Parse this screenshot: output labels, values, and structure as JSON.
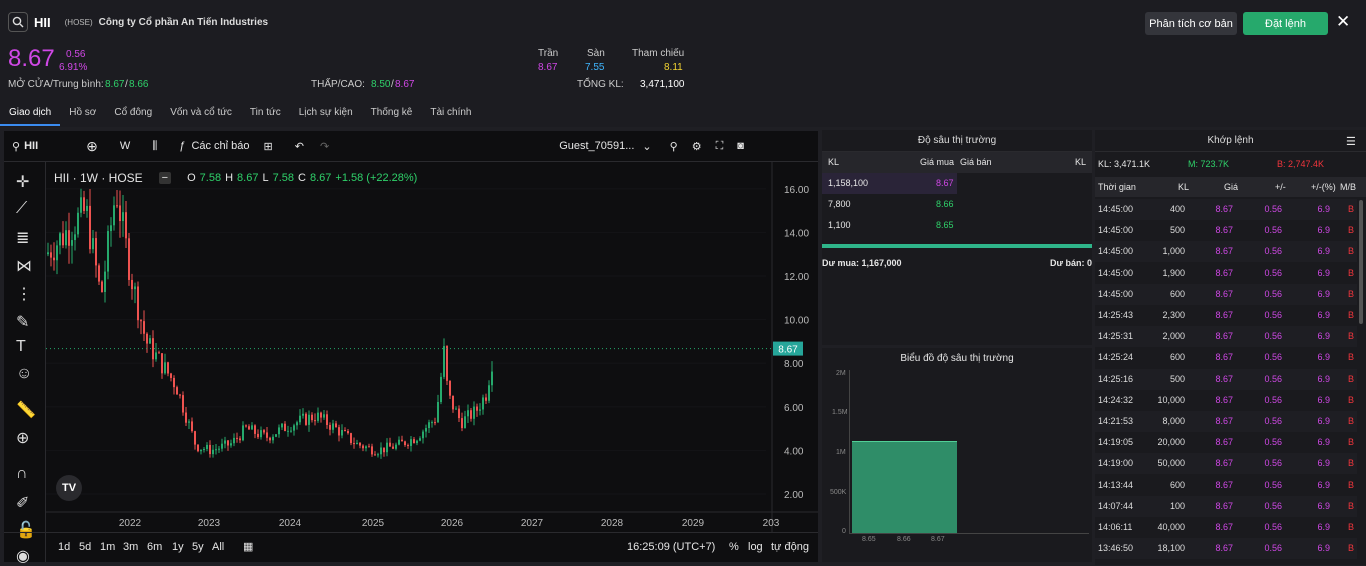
{
  "header": {
    "code": "HII",
    "exchange": "(HOSE)",
    "name": "Công ty Cổ phần An Tiến Industries",
    "btn_basic": "Phân tích cơ bản",
    "btn_order": "Đặt lệnh",
    "close": "✕"
  },
  "quote": {
    "price": "8.67",
    "change": "0.56",
    "pct": "6.91%",
    "open_label": "MỞ CỬA/Trung bình:",
    "open": "8.67",
    "avg": "8.66",
    "lowhigh_label": "THẤP/CAO:",
    "low": "8.50",
    "high": "8.67",
    "ceil_label": "Trần",
    "floor_label": "Sàn",
    "ref_label": "Tham chiếu",
    "ceil": "8.67",
    "floor": "7.55",
    "ref": "8.11",
    "vol_label": "TỔNG KL:",
    "vol": "3,471,100"
  },
  "tabs": [
    "Giao dịch",
    "Hồ sơ",
    "Cổ đông",
    "Vốn và cổ tức",
    "Tin tức",
    "Lịch sự kiện",
    "Thống kê",
    "Tài chính"
  ],
  "chart_toolbar": {
    "symbol": "HII",
    "interval": "W",
    "indicators": "Các chỉ báo",
    "user": "Guest_70591..."
  },
  "chart_legend": {
    "title": "HII · 1W · HOSE",
    "o": "7.58",
    "h": "8.67",
    "l": "7.58",
    "c": "8.67",
    "chg": "+1.58 (+22.28%)",
    "o_l": "O",
    "h_l": "H",
    "l_l": "L",
    "c_l": "C"
  },
  "chart_data": {
    "type": "candlestick",
    "y_ticks": [
      "16.00",
      "14.00",
      "12.00",
      "10.00",
      "8.00",
      "6.00",
      "4.00",
      "2.00"
    ],
    "x_ticks": [
      "2022",
      "2023",
      "2024",
      "2025",
      "2026",
      "2027",
      "2028",
      "2029",
      "203"
    ],
    "last": "8.67",
    "ylim": [
      2,
      17
    ]
  },
  "chart_bottom": {
    "ranges": [
      "1d",
      "5d",
      "1m",
      "3m",
      "6m",
      "1y",
      "5y",
      "All"
    ],
    "time": "16:25:09 (UTC+7)",
    "pct": "%",
    "log": "log",
    "auto": "tự động"
  },
  "depth": {
    "title": "Độ sâu thị trường",
    "cols": [
      "KL",
      "Giá mua",
      "Giá bán",
      "KL"
    ],
    "rows": [
      {
        "kl": "1,158,100",
        "price": "8.67"
      },
      {
        "kl": "7,800",
        "price": "8.66"
      },
      {
        "kl": "1,100",
        "price": "8.65"
      }
    ],
    "buy_label": "Dư mua: 1,167,000",
    "sell_label": "Dư bán: 0"
  },
  "depth_chart": {
    "title": "Biểu đồ độ sâu thị trường",
    "y": [
      "2M",
      "1.5M",
      "1M",
      "500K",
      "0"
    ],
    "x": [
      "8.65",
      "8.66",
      "8.67"
    ]
  },
  "matched": {
    "title": "Khớp lệnh",
    "kl": "KL: 3,471.1K",
    "m": "M: 723.7K",
    "b": "B: 2,747.4K",
    "cols": [
      "Thời gian",
      "KL",
      "Giá",
      "+/-",
      "+/-(%)",
      "M/B"
    ],
    "rows": [
      [
        "14:45:00",
        "400"
      ],
      [
        "14:45:00",
        "500"
      ],
      [
        "14:45:00",
        "1,000"
      ],
      [
        "14:45:00",
        "1,900"
      ],
      [
        "14:45:00",
        "600"
      ],
      [
        "14:25:43",
        "2,300"
      ],
      [
        "14:25:31",
        "2,000"
      ],
      [
        "14:25:24",
        "600"
      ],
      [
        "14:25:16",
        "500"
      ],
      [
        "14:24:32",
        "10,000"
      ],
      [
        "14:21:53",
        "8,000"
      ],
      [
        "14:19:05",
        "20,000"
      ],
      [
        "14:19:00",
        "50,000"
      ],
      [
        "14:13:44",
        "600"
      ],
      [
        "14:07:44",
        "100"
      ],
      [
        "14:06:11",
        "40,000"
      ],
      [
        "13:46:50",
        "18,100"
      ]
    ],
    "price": "8.67",
    "chg": "0.56",
    "pct": "6.9",
    "side": "B"
  }
}
